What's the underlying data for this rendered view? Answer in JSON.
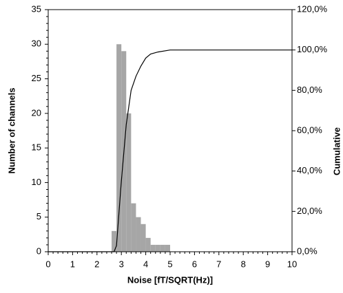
{
  "chart_data": {
    "type": "histogram",
    "xlabel": "Noise   [fT/SQRT(Hz)]",
    "ylabel": "Number of channels",
    "y2label": "Cumulative",
    "bins": [
      2.6,
      2.8,
      3.0,
      3.2,
      3.4,
      3.6,
      3.8,
      4.0,
      4.2,
      4.4,
      4.6,
      4.8,
      5.0
    ],
    "values": [
      3,
      30,
      29,
      20,
      7,
      5,
      4,
      2,
      1,
      1,
      1,
      1
    ],
    "color": "#a6a6a6",
    "series": [
      {
        "color": "#000000",
        "axis": "y2",
        "x": [
          0,
          2.7,
          2.8,
          3.0,
          3.2,
          3.4,
          3.6,
          3.8,
          4.0,
          4.2,
          4.5,
          5.0,
          10
        ],
        "values": [
          0,
          0,
          3,
          35,
          63,
          80,
          87,
          92,
          96,
          98,
          99,
          100,
          100
        ]
      }
    ],
    "xlim": [
      0,
      10
    ],
    "xticks": [
      0,
      1,
      2,
      3,
      4,
      5,
      6,
      7,
      8,
      9,
      10
    ],
    "ylim": [
      0,
      35
    ],
    "yticks": [
      0,
      5,
      10,
      15,
      20,
      25,
      30,
      35
    ],
    "y2lim": [
      0,
      120
    ],
    "y2ticks": [
      {
        "value": 0,
        "label": "0,0%"
      },
      {
        "value": 20,
        "label": "20,0%"
      },
      {
        "value": 40,
        "label": "40,0%"
      },
      {
        "value": 60,
        "label": "60,0%"
      },
      {
        "value": 80,
        "label": "80,0%"
      },
      {
        "value": 100,
        "label": "100,0%"
      },
      {
        "value": 120,
        "label": "120,0%"
      }
    ]
  }
}
